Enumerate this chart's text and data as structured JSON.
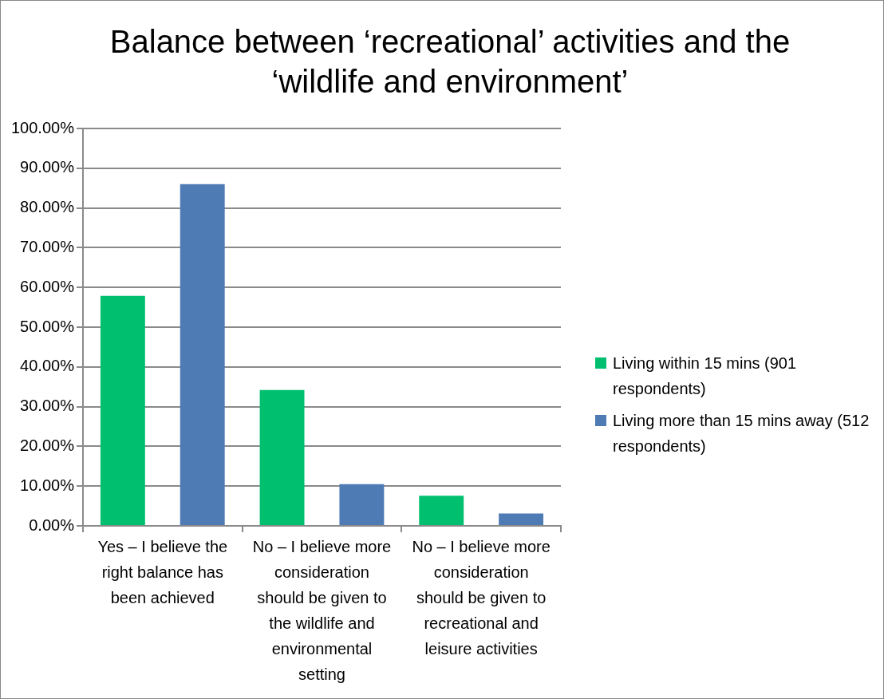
{
  "chart_data": {
    "type": "bar",
    "title": "Balance between ‘recreational’ activities and the ‘wildlife and environment’",
    "categories": [
      "Yes – I believe the right balance has been achieved",
      "No – I believe more consideration should be given to the wildlife and environmental setting",
      "No – I believe more consideration should be given to recreational and leisure activities"
    ],
    "series": [
      {
        "name": "Living within 15 mins (901 respondents)",
        "color": "#00bf6f",
        "values": [
          57.9,
          34.2,
          7.6
        ]
      },
      {
        "name": "Living more than 15 mins away (512 respondents)",
        "color": "#4f7bb5",
        "values": [
          86.0,
          10.5,
          3.1
        ]
      }
    ],
    "ylim": [
      0,
      100
    ],
    "yticks": [
      {
        "value": 0,
        "label": "0.00%"
      },
      {
        "value": 10,
        "label": "10.00%"
      },
      {
        "value": 20,
        "label": "20.00%"
      },
      {
        "value": 30,
        "label": "30.00%"
      },
      {
        "value": 40,
        "label": "40.00%"
      },
      {
        "value": 50,
        "label": "50.00%"
      },
      {
        "value": 60,
        "label": "60.00%"
      },
      {
        "value": 70,
        "label": "70.00%"
      },
      {
        "value": 80,
        "label": "80.00%"
      },
      {
        "value": 90,
        "label": "90.00%"
      },
      {
        "value": 100,
        "label": "100.00%"
      }
    ],
    "grid": "y",
    "legend": "right"
  }
}
